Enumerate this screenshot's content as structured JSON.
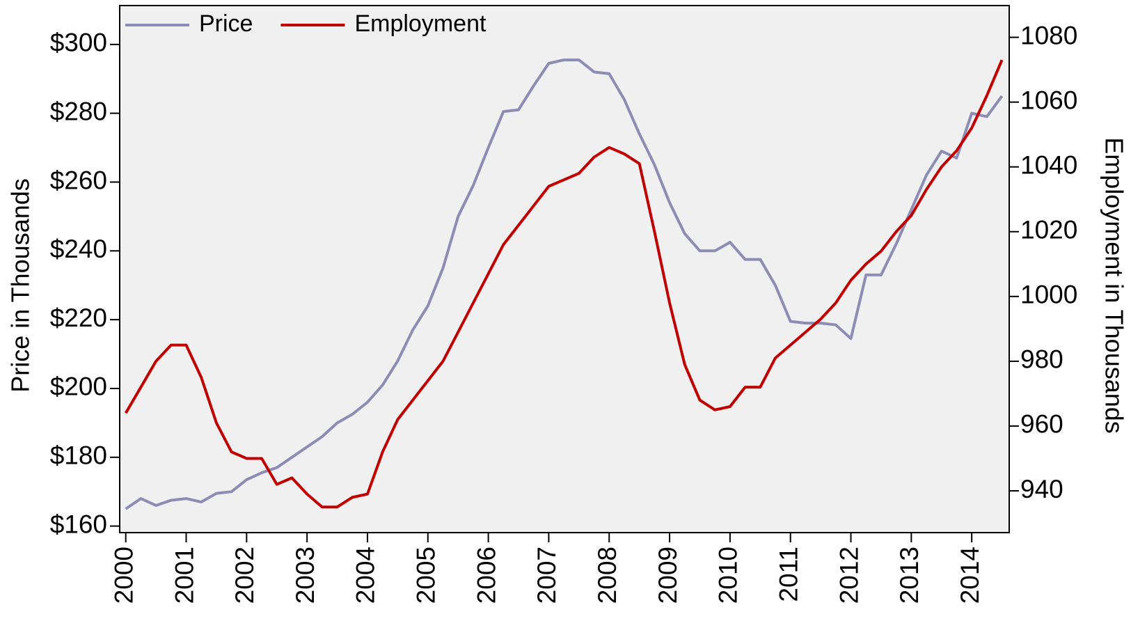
{
  "chart_data": {
    "type": "line",
    "y_label": "Price in Thousands",
    "y2_label": "Employment in Thousands",
    "x": [
      2000,
      2000.25,
      2000.5,
      2000.75,
      2001,
      2001.25,
      2001.5,
      2001.75,
      2002,
      2002.25,
      2002.5,
      2002.75,
      2003,
      2003.25,
      2003.5,
      2003.75,
      2004,
      2004.25,
      2004.5,
      2004.75,
      2005,
      2005.25,
      2005.5,
      2005.75,
      2006,
      2006.25,
      2006.5,
      2006.75,
      2007,
      2007.25,
      2007.5,
      2007.75,
      2008,
      2008.25,
      2008.5,
      2008.75,
      2009,
      2009.25,
      2009.5,
      2009.75,
      2010,
      2010.25,
      2010.5,
      2010.75,
      2011,
      2011.25,
      2011.5,
      2011.75,
      2012,
      2012.25,
      2012.5,
      2012.75,
      2013,
      2013.25,
      2013.5,
      2013.75,
      2014,
      2014.25,
      2014.5
    ],
    "series": [
      {
        "name": "Price",
        "color": "#8c8cb4",
        "values": [
          165,
          168,
          166,
          167.5,
          168,
          167,
          169.5,
          170,
          173.5,
          175.5,
          177,
          180,
          183,
          186,
          190,
          192.5,
          196,
          201,
          208,
          217,
          224,
          235,
          250,
          259,
          270,
          280.5,
          281,
          288,
          294.5,
          295.5,
          295.5,
          292,
          291.5,
          284,
          274,
          265,
          254,
          245,
          240,
          240,
          242.5,
          237.5,
          237.5,
          230,
          219.5,
          219,
          219,
          218.5,
          214.5,
          233,
          233,
          242,
          252,
          262,
          269,
          267,
          280,
          279,
          285
        ]
      },
      {
        "name": "Employment",
        "color": "#c00000",
        "axis": "y2",
        "values": [
          964,
          972,
          980,
          985,
          985,
          975,
          961,
          952,
          950,
          950,
          942,
          944,
          939,
          935,
          935,
          938,
          939,
          952,
          962,
          968,
          974,
          980,
          989,
          998,
          1007,
          1016,
          1022,
          1028,
          1034,
          1036,
          1038,
          1043,
          1046,
          1044,
          1041,
          1020,
          998,
          979,
          968,
          965,
          966,
          972,
          972,
          981,
          985,
          989,
          993,
          998,
          1005,
          1010,
          1014,
          1020,
          1025,
          1033,
          1040,
          1045,
          1052,
          1062,
          1073
        ]
      }
    ],
    "xlim": [
      1999.9,
      2014.62
    ],
    "xticks": [
      2000,
      2001,
      2002,
      2003,
      2004,
      2005,
      2006,
      2007,
      2008,
      2009,
      2010,
      2011,
      2012,
      2013,
      2014
    ],
    "ylim": [
      158.1,
      311.3
    ],
    "yticks": [
      {
        "value": 160,
        "label": "$160"
      },
      {
        "value": 180,
        "label": "$180"
      },
      {
        "value": 200,
        "label": "$200"
      },
      {
        "value": 220,
        "label": "$220"
      },
      {
        "value": 240,
        "label": "$240"
      },
      {
        "value": 260,
        "label": "$260"
      },
      {
        "value": 280,
        "label": "$280"
      },
      {
        "value": 300,
        "label": "$300"
      }
    ],
    "y2lim": [
      927.1,
      1089.8
    ],
    "y2ticks": [
      940,
      960,
      980,
      1000,
      1020,
      1040,
      1060,
      1080
    ],
    "legend": "top-left"
  }
}
